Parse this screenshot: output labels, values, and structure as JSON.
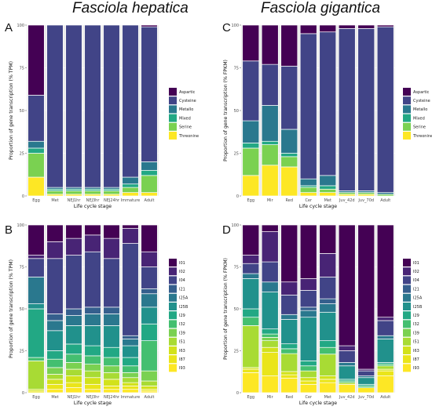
{
  "titles": {
    "left": "Fasciola hepatica",
    "right": "Fasciola gigantica"
  },
  "colors": {
    "family": {
      "Aspartic": "#440154",
      "Cysteine": "#414487",
      "Metallo": "#2a788e",
      "Mixed": "#22a884",
      "Serine": "#7ad151",
      "Threonine": "#fde725"
    },
    "clan": {
      "I01": "#440154",
      "I02": "#482475",
      "I04": "#414487",
      "I21": "#355f8d",
      "I25A": "#2a788e",
      "I25B": "#21918c",
      "I29": "#22a884",
      "I32": "#44bf70",
      "I39": "#7ad151",
      "I51": "#a8db34",
      "I63": "#d2e21b",
      "I87": "#eae51a",
      "I93": "#fde725"
    }
  },
  "chart_data": [
    {
      "panel": "A",
      "type": "bar",
      "stacked": true,
      "categories": [
        "Egg",
        "Met",
        "NEJ1hr",
        "NEJ3hr",
        "NEJ24hr",
        "Immature",
        "Adult"
      ],
      "series": [
        {
          "name": "Threonine",
          "values": [
            11,
            1,
            1,
            1,
            1,
            2,
            2
          ]
        },
        {
          "name": "Serine",
          "values": [
            14,
            2,
            2,
            2,
            2,
            3,
            10
          ]
        },
        {
          "name": "Mixed",
          "values": [
            3,
            1,
            1,
            1,
            1,
            2,
            3
          ]
        },
        {
          "name": "Metallo",
          "values": [
            4,
            1,
            1,
            1,
            1,
            4,
            5
          ]
        },
        {
          "name": "Cysteine",
          "values": [
            27,
            95,
            95,
            95,
            95,
            89,
            79
          ]
        },
        {
          "name": "Aspartic",
          "values": [
            41,
            0,
            0,
            0,
            0,
            0,
            1
          ]
        }
      ],
      "legend": [
        "Aspartic",
        "Cysteine",
        "Metallo",
        "Mixed",
        "Serine",
        "Threonine"
      ],
      "xlabel": "Life cycle stage",
      "ylabel": "Proportion of gene transcription (% TPM)",
      "yticks": [
        0,
        25,
        50,
        75,
        100
      ],
      "ylim": [
        0,
        100
      ]
    },
    {
      "panel": "C",
      "type": "bar",
      "stacked": true,
      "categories": [
        "Egg",
        "Mir",
        "Red",
        "Cer",
        "Met",
        "Juv_42d",
        "Juv_70d",
        "Adult"
      ],
      "series": [
        {
          "name": "Threonine",
          "values": [
            12,
            18,
            17,
            2,
            2,
            1,
            1,
            0
          ]
        },
        {
          "name": "Serine",
          "values": [
            16,
            12,
            6,
            3,
            2,
            1,
            1,
            1
          ]
        },
        {
          "name": "Mixed",
          "values": [
            3,
            2,
            2,
            1,
            2,
            0,
            0,
            0
          ]
        },
        {
          "name": "Metallo",
          "values": [
            13,
            21,
            14,
            4,
            6,
            1,
            1,
            1
          ]
        },
        {
          "name": "Cysteine",
          "values": [
            35,
            24,
            37,
            85,
            84,
            95,
            95,
            97
          ]
        },
        {
          "name": "Aspartic",
          "values": [
            21,
            23,
            24,
            5,
            4,
            2,
            2,
            1
          ]
        }
      ],
      "legend": [
        "Aspartic",
        "Cysteine",
        "Metallo",
        "Mixed",
        "Serine",
        "Threonine"
      ],
      "xlabel": "Life cycle stage",
      "ylabel": "Proportion of gene transcription (% FPKM)",
      "yticks": [
        0,
        25,
        50,
        75,
        100
      ],
      "ylim": [
        0,
        100
      ]
    },
    {
      "panel": "B",
      "type": "bar",
      "stacked": true,
      "categories": [
        "Egg",
        "Met",
        "NEJ1hr",
        "NEJ3hr",
        "NEJ24hr",
        "Immature",
        "Adult"
      ],
      "series": [
        {
          "name": "I93",
          "values": [
            0,
            2,
            3,
            2,
            2,
            2,
            1
          ]
        },
        {
          "name": "I87",
          "values": [
            1,
            3,
            3,
            3,
            2,
            2,
            1
          ]
        },
        {
          "name": "I63",
          "values": [
            1,
            3,
            4,
            4,
            4,
            2,
            2
          ]
        },
        {
          "name": "I51",
          "values": [
            17,
            3,
            4,
            4,
            4,
            3,
            3
          ]
        },
        {
          "name": "I39",
          "values": [
            0,
            4,
            4,
            4,
            4,
            3,
            6
          ]
        },
        {
          "name": "I32",
          "values": [
            2,
            5,
            5,
            5,
            5,
            4,
            18
          ]
        },
        {
          "name": "I29",
          "values": [
            29,
            5,
            6,
            6,
            6,
            5,
            10
          ]
        },
        {
          "name": "I25B",
          "values": [
            3,
            12,
            11,
            12,
            13,
            7,
            10
          ]
        },
        {
          "name": "I25A",
          "values": [
            16,
            6,
            6,
            7,
            7,
            4,
            8
          ]
        },
        {
          "name": "I21",
          "values": [
            0,
            4,
            4,
            4,
            4,
            2,
            3
          ]
        },
        {
          "name": "I04",
          "values": [
            11,
            33,
            32,
            33,
            29,
            55,
            13
          ]
        },
        {
          "name": "I02",
          "values": [
            2,
            10,
            10,
            10,
            12,
            9,
            9
          ]
        },
        {
          "name": "I01",
          "values": [
            18,
            10,
            8,
            6,
            8,
            2,
            16
          ]
        }
      ],
      "legend": [
        "I01",
        "I02",
        "I04",
        "I21",
        "I25A",
        "I25B",
        "I29",
        "I32",
        "I39",
        "I51",
        "I63",
        "I87",
        "I93"
      ],
      "xlabel": "Life cycle stage",
      "ylabel": "Proportion of gene transcription (% TPM)",
      "yticks": [
        0,
        25,
        50,
        75,
        100
      ],
      "ylim": [
        0,
        100
      ]
    },
    {
      "panel": "D",
      "type": "bar",
      "stacked": true,
      "categories": [
        "Egg",
        "Mir",
        "Red",
        "Cer",
        "Met",
        "Juv_42d",
        "Juv_70d",
        "Adult"
      ],
      "series": [
        {
          "name": "I93",
          "values": [
            12,
            10,
            9,
            5,
            6,
            5,
            3,
            10
          ]
        },
        {
          "name": "I87",
          "values": [
            2,
            14,
            2,
            2,
            2,
            0,
            0,
            3
          ]
        },
        {
          "name": "I63",
          "values": [
            1,
            3,
            2,
            2,
            2,
            0,
            0,
            1
          ]
        },
        {
          "name": "I51",
          "values": [
            25,
            4,
            11,
            4,
            13,
            1,
            0,
            2
          ]
        },
        {
          "name": "I39",
          "values": [
            0,
            2,
            0,
            0,
            0,
            0,
            0,
            0
          ]
        },
        {
          "name": "I32",
          "values": [
            5,
            2,
            3,
            3,
            4,
            1,
            1,
            1
          ]
        },
        {
          "name": "I29",
          "values": [
            5,
            3,
            3,
            3,
            4,
            1,
            1,
            1
          ]
        },
        {
          "name": "I25B",
          "values": [
            18,
            22,
            15,
            26,
            17,
            8,
            4,
            14
          ]
        },
        {
          "name": "I25A",
          "values": [
            3,
            6,
            3,
            4,
            5,
            2,
            1,
            2
          ]
        },
        {
          "name": "I21",
          "values": [
            0,
            0,
            0,
            2,
            3,
            0,
            0,
            0
          ]
        },
        {
          "name": "I04",
          "values": [
            6,
            12,
            12,
            10,
            13,
            7,
            3,
            9
          ]
        },
        {
          "name": "I02",
          "values": [
            5,
            18,
            8,
            7,
            14,
            3,
            1,
            2
          ]
        },
        {
          "name": "I01",
          "values": [
            18,
            4,
            35,
            32,
            17,
            72,
            86,
            55
          ]
        }
      ],
      "legend": [
        "I01",
        "I02",
        "I04",
        "I21",
        "I25A",
        "I25B",
        "I29",
        "I32",
        "I39",
        "I51",
        "I63",
        "I87",
        "I93"
      ],
      "xlabel": "Life cycle stage",
      "ylabel": "Proportion of gene transcription (% FPKM)",
      "yticks": [
        0,
        25,
        50,
        75,
        100
      ],
      "ylim": [
        0,
        100
      ]
    }
  ]
}
